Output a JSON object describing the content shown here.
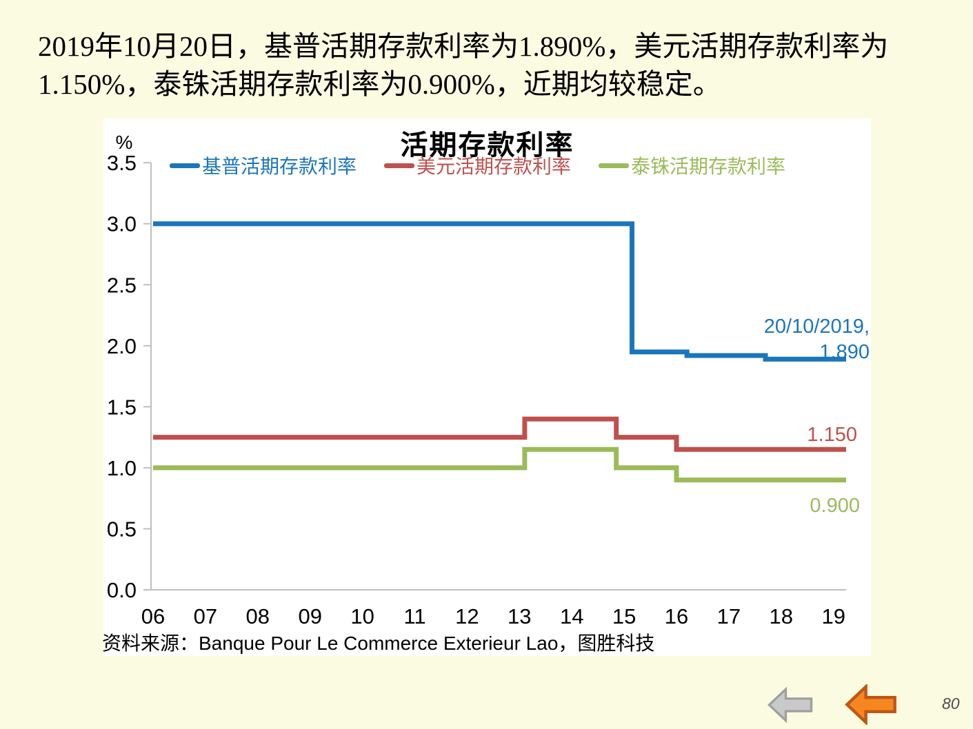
{
  "slide": {
    "background_color": "#fbfbe1",
    "heading_lines": [
      "2019年10月20日，基普活期存款利率为1.890%，美元活期存款利率为",
      "1.150%，泰铢活期存款利率为0.900%，近期均较稳定。"
    ],
    "page_number": "80"
  },
  "chart_data": {
    "type": "line",
    "title": "活期存款利率",
    "ylabel": "%",
    "xlabel": "",
    "x_tick_labels": [
      "06",
      "07",
      "08",
      "09",
      "10",
      "11",
      "12",
      "13",
      "14",
      "15",
      "16",
      "17",
      "18",
      "19"
    ],
    "x_range_years": [
      2006.0,
      2019.8
    ],
    "ylim": [
      0.0,
      3.5
    ],
    "y_ticks": [
      0.0,
      0.5,
      1.0,
      1.5,
      2.0,
      2.5,
      3.0,
      3.5
    ],
    "grid": false,
    "legend_position": "top",
    "axis_color": "#bfbfbf",
    "tick_label_color": "#000000",
    "series": [
      {
        "id": "kip",
        "name": "基普活期存款利率",
        "color": "#1b75bc",
        "points": [
          [
            2006.0,
            3.0
          ],
          [
            2015.15,
            3.0
          ],
          [
            2015.15,
            1.95
          ],
          [
            2016.2,
            1.95
          ],
          [
            2016.2,
            1.92
          ],
          [
            2017.7,
            1.92
          ],
          [
            2017.7,
            1.89
          ],
          [
            2019.8,
            1.89
          ]
        ],
        "end_annotation": [
          "20/10/2019,",
          "1.890"
        ]
      },
      {
        "id": "usd",
        "name": "美元活期存款利率",
        "color": "#c0504d",
        "points": [
          [
            2006.0,
            1.25
          ],
          [
            2013.1,
            1.25
          ],
          [
            2013.1,
            1.4
          ],
          [
            2014.85,
            1.4
          ],
          [
            2014.85,
            1.25
          ],
          [
            2016.0,
            1.25
          ],
          [
            2016.0,
            1.15
          ],
          [
            2019.8,
            1.15
          ]
        ],
        "end_annotation": [
          "1.150"
        ]
      },
      {
        "id": "thb",
        "name": "泰铢活期存款利率",
        "color": "#9bbb59",
        "points": [
          [
            2006.0,
            1.0
          ],
          [
            2013.1,
            1.0
          ],
          [
            2013.1,
            1.15
          ],
          [
            2014.85,
            1.15
          ],
          [
            2014.85,
            1.0
          ],
          [
            2016.0,
            1.0
          ],
          [
            2016.0,
            0.9
          ],
          [
            2019.8,
            0.9
          ]
        ],
        "end_annotation": [
          "0.900"
        ]
      }
    ],
    "source_note": "资料来源：Banque Pour Le Commerce Exterieur Lao，图胜科技"
  },
  "footer": {
    "back_arrow_gray": {
      "fill": "#c9c9c9",
      "stroke": "#9e9e9e"
    },
    "back_arrow_orange": {
      "fill": "#f6861f",
      "stroke": "#be5714"
    }
  }
}
